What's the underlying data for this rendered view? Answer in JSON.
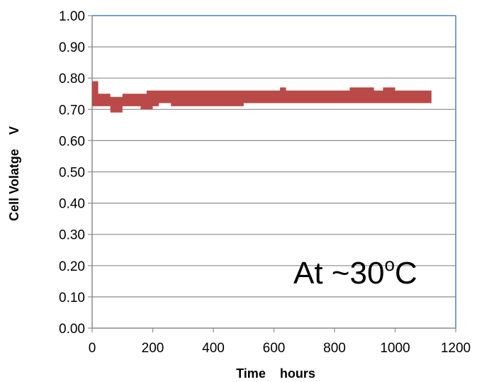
{
  "chart_data": {
    "type": "line",
    "title": "",
    "xlabel": "Time    hours",
    "ylabel": "Cell Volatge    V",
    "xlim": [
      0,
      1200
    ],
    "ylim": [
      0.0,
      1.0
    ],
    "x_ticks": [
      0,
      200,
      400,
      600,
      800,
      1000,
      1200
    ],
    "x_tick_labels": [
      "0",
      "200",
      "400",
      "600",
      "800",
      "1000",
      "1200"
    ],
    "y_ticks": [
      0.0,
      0.1,
      0.2,
      0.3,
      0.4,
      0.5,
      0.6,
      0.7,
      0.8,
      0.9,
      1.0
    ],
    "y_tick_labels": [
      "0.00",
      "0.10",
      "0.20",
      "0.30",
      "0.40",
      "0.50",
      "0.60",
      "0.70",
      "0.80",
      "0.90",
      "1.00"
    ],
    "grid": true,
    "legend": "none",
    "annotation": {
      "text": "At ~30",
      "superscript": "o",
      "suffix": "C"
    },
    "colors": {
      "series": "#b94a48",
      "grid": "#8c8c8c",
      "frame": "#4f81bd"
    },
    "series": [
      {
        "x": [
          0,
          10,
          20,
          40,
          60,
          80,
          100,
          120,
          140,
          160,
          180,
          200,
          220,
          240,
          260,
          300,
          350,
          400,
          450,
          500,
          550,
          600,
          620,
          640,
          700,
          750,
          800,
          850,
          870,
          900,
          930,
          960,
          1000,
          1050,
          1100,
          1120
        ],
        "y_low": [
          0.71,
          0.71,
          0.71,
          0.71,
          0.69,
          0.69,
          0.71,
          0.71,
          0.71,
          0.7,
          0.7,
          0.71,
          0.72,
          0.72,
          0.71,
          0.71,
          0.71,
          0.71,
          0.71,
          0.72,
          0.72,
          0.72,
          0.72,
          0.72,
          0.72,
          0.72,
          0.72,
          0.72,
          0.72,
          0.72,
          0.72,
          0.72,
          0.72,
          0.72,
          0.72,
          0.72
        ],
        "y_high": [
          0.79,
          0.79,
          0.75,
          0.75,
          0.74,
          0.74,
          0.75,
          0.75,
          0.75,
          0.75,
          0.76,
          0.76,
          0.76,
          0.76,
          0.76,
          0.76,
          0.76,
          0.76,
          0.76,
          0.76,
          0.76,
          0.76,
          0.77,
          0.76,
          0.76,
          0.76,
          0.76,
          0.77,
          0.77,
          0.77,
          0.76,
          0.77,
          0.76,
          0.76,
          0.76,
          0.76
        ]
      }
    ]
  }
}
